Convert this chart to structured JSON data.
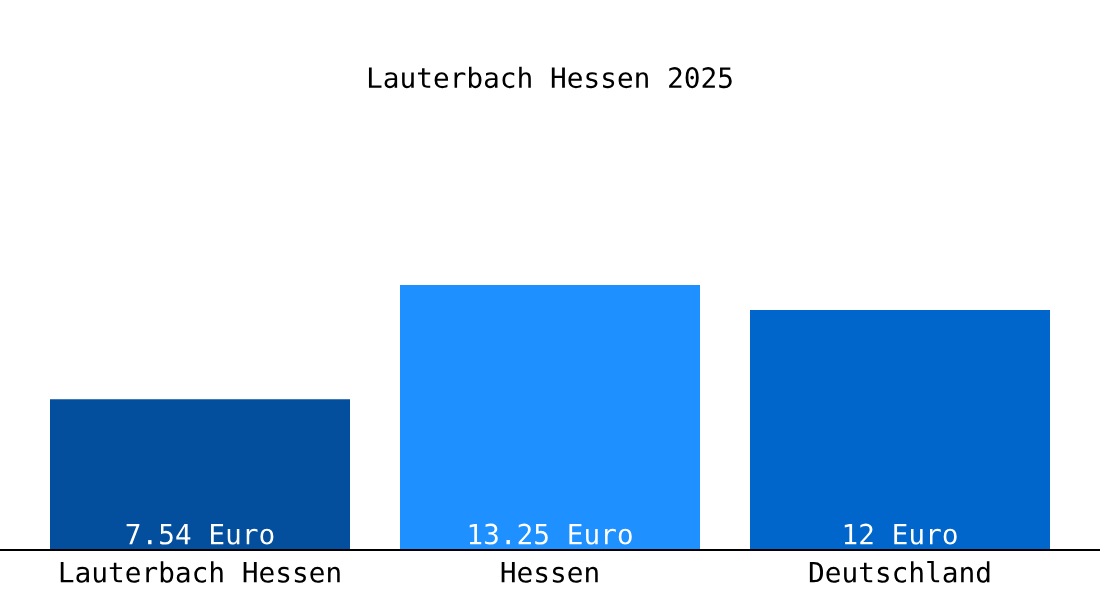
{
  "chart_data": {
    "type": "bar",
    "title": "Lauterbach Hessen 2025",
    "categories": [
      "Lauterbach Hessen",
      "Hessen",
      "Deutschland"
    ],
    "values": [
      7.54,
      13.25,
      12
    ],
    "colors": [
      "#034f9e",
      "#1e90ff",
      "#0066cc"
    ],
    "value_labels": [
      "7.54 Euro",
      "13.25 Euro",
      "12 Euro"
    ],
    "grid": false,
    "legend": false
  }
}
